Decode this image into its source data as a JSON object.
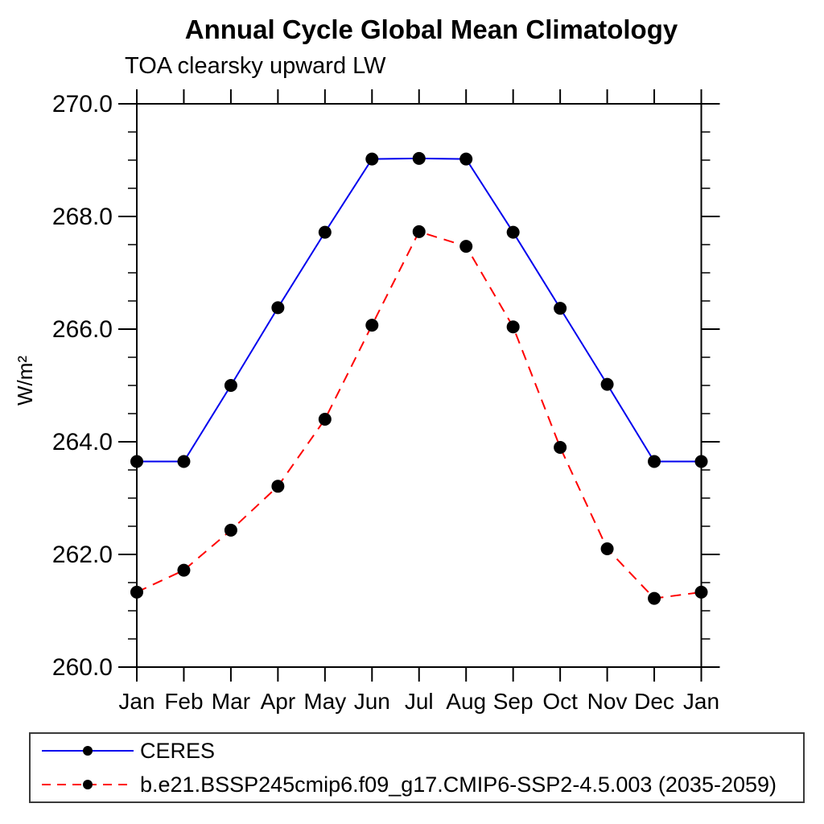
{
  "header": {
    "title": "Annual Cycle Global Mean Climatology",
    "subtitle": "TOA clearsky upward LW"
  },
  "chart_data": {
    "type": "line",
    "title": "Annual Cycle Global Mean Climatology",
    "subtitle": "TOA clearsky upward LW",
    "ylabel": "W/m²",
    "xlabel": "",
    "categories": [
      "Jan",
      "Feb",
      "Mar",
      "Apr",
      "May",
      "Jun",
      "Jul",
      "Aug",
      "Sep",
      "Oct",
      "Nov",
      "Dec",
      "Jan"
    ],
    "series": [
      {
        "name": "CERES",
        "color": "#0000ee",
        "style": "solid",
        "marker": "filled-circle",
        "values": [
          263.65,
          263.65,
          265.0,
          266.38,
          267.72,
          269.02,
          269.03,
          269.02,
          267.72,
          266.37,
          265.02,
          263.65,
          263.65
        ]
      },
      {
        "name": "b.e21.BSSP245cmip6.f09_g17.CMIP6-SSP2-4.5.003 (2035-2059)",
        "color": "#ff0000",
        "style": "dashed",
        "marker": "filled-circle",
        "values": [
          261.33,
          261.72,
          262.43,
          263.21,
          264.4,
          266.07,
          267.73,
          267.47,
          266.04,
          263.9,
          262.1,
          261.22,
          261.33
        ]
      }
    ],
    "ylim": [
      260.0,
      270.0
    ],
    "ytick_values": [
      260.0,
      262.0,
      264.0,
      266.0,
      268.0,
      270.0
    ],
    "ytick_labels": [
      "260.0",
      "262.0",
      "264.0",
      "266.0",
      "268.0",
      "270.0"
    ],
    "ytick_minor_step": 0.5,
    "grid": false,
    "axis_color": "#000000",
    "marker_color": "#000000",
    "legend_position": "bottom-left-box"
  }
}
